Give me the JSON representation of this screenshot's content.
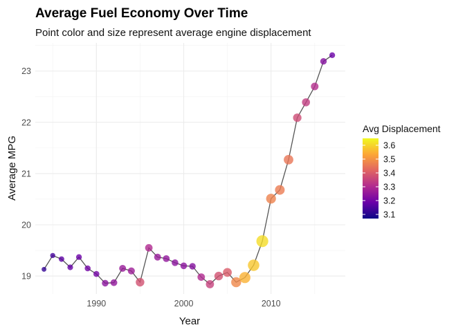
{
  "chart_data": {
    "type": "scatter",
    "title": "Average Fuel Economy Over Time",
    "subtitle": "Point color and size represent average engine displacement",
    "xlabel": "Year",
    "ylabel": "Average MPG",
    "xlim": [
      1983,
      2018.5
    ],
    "ylim": [
      18.65,
      23.55
    ],
    "x_ticks": [
      1990,
      2000,
      2010
    ],
    "x_tick_labels": [
      "1990",
      "2000",
      "2010"
    ],
    "y_ticks": [
      19,
      20,
      21,
      22,
      23
    ],
    "y_tick_labels": [
      "19",
      "20",
      "21",
      "22",
      "23"
    ],
    "grid": true,
    "connecting_line": true,
    "legend": {
      "title": "Avg Displacement",
      "position": "right",
      "ticks": [
        3.1,
        3.2,
        3.3,
        3.4,
        3.5,
        3.6
      ],
      "tick_labels": [
        "3.1",
        "3.2",
        "3.3",
        "3.4",
        "3.5",
        "3.6"
      ],
      "range": [
        3.07,
        3.65
      ],
      "colors": [
        "#0d0887",
        "#6a00a8",
        "#b12a90",
        "#e16462",
        "#fca636",
        "#f0f921"
      ]
    },
    "series": [
      {
        "x": [
          1984,
          1985,
          1986,
          1987,
          1988,
          1989,
          1990,
          1991,
          1992,
          1993,
          1994,
          1995,
          1996,
          1997,
          1998,
          1999,
          2000,
          2001,
          2002,
          2003,
          2004,
          2005,
          2006,
          2007,
          2008,
          2009,
          2010,
          2011,
          2012,
          2013,
          2014,
          2015,
          2016,
          2017
        ],
        "y": [
          19.13,
          19.4,
          19.33,
          19.17,
          19.37,
          19.15,
          19.04,
          18.86,
          18.87,
          19.15,
          19.1,
          18.88,
          19.55,
          19.37,
          19.34,
          19.26,
          19.2,
          19.19,
          18.98,
          18.84,
          19.0,
          19.07,
          18.88,
          18.97,
          19.21,
          19.68,
          20.51,
          20.68,
          21.27,
          22.09,
          22.39,
          22.7,
          23.19,
          23.31
        ],
        "displacement": [
          3.12,
          3.14,
          3.17,
          3.18,
          3.19,
          3.2,
          3.2,
          3.24,
          3.25,
          3.26,
          3.27,
          3.38,
          3.3,
          3.26,
          3.25,
          3.24,
          3.24,
          3.23,
          3.3,
          3.35,
          3.38,
          3.4,
          3.48,
          3.55,
          3.58,
          3.61,
          3.47,
          3.46,
          3.45,
          3.37,
          3.34,
          3.31,
          3.23,
          3.19
        ]
      }
    ]
  }
}
